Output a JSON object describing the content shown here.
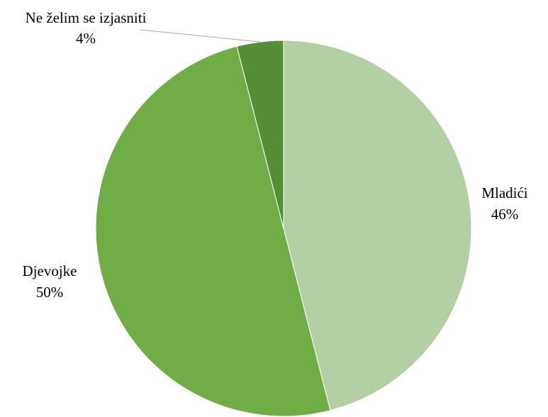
{
  "chart_data": {
    "type": "pie",
    "title": "",
    "start_angle_deg": 0,
    "direction": "clockwise",
    "slices": [
      {
        "label": "Mladići",
        "value": 46,
        "value_label": "46%",
        "color": "#b5cfa5"
      },
      {
        "label": "Djevojke",
        "value": 50,
        "value_label": "50%",
        "color": "#70ad47"
      },
      {
        "label": "Ne želim se izjasniti",
        "value": 4,
        "value_label": "4%",
        "color": "#548e37"
      }
    ],
    "legend": "none",
    "label_style": "category name and percentage outside slice",
    "leader_line_color": "#a6a6a6"
  }
}
